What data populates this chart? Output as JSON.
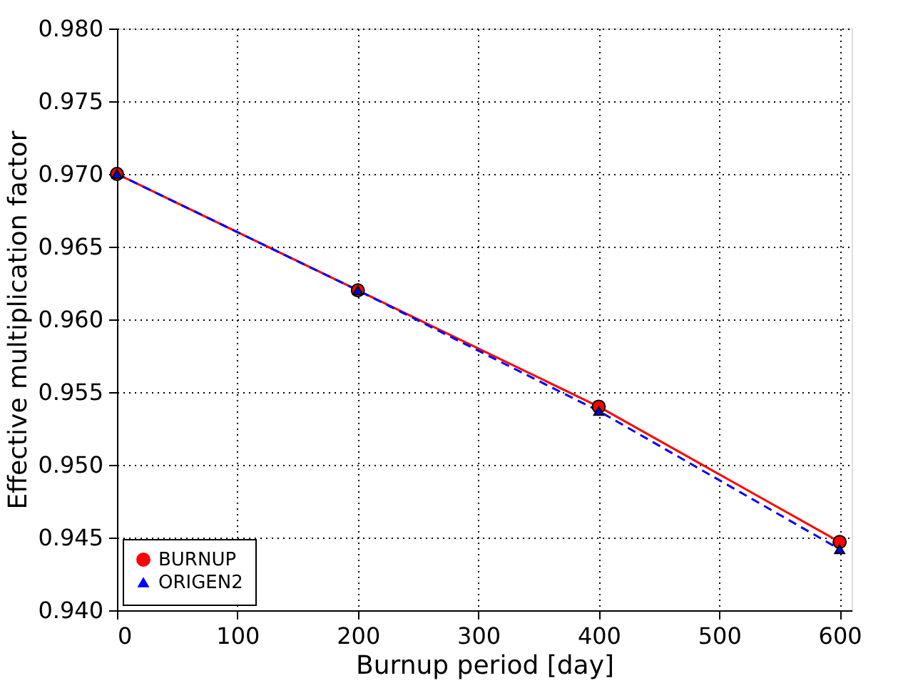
{
  "chart_data": {
    "type": "line",
    "xlabel": "Burnup period [day]",
    "ylabel": "Effective multiplication factor",
    "x": [
      0,
      200,
      400,
      600
    ],
    "series": [
      {
        "name": "BURNUP",
        "color": "#ff0000",
        "values": [
          0.97,
          0.962,
          0.954,
          0.9447
        ],
        "marker": "circle",
        "line_style": "solid"
      },
      {
        "name": "ORIGEN2",
        "color": "#0000ff",
        "values": [
          0.97,
          0.962,
          0.9537,
          0.9442
        ],
        "marker": "triangle",
        "line_style": "dashed"
      }
    ],
    "xlim": [
      0,
      610
    ],
    "xticks": [
      0,
      100,
      200,
      300,
      400,
      500,
      600
    ],
    "ylim": [
      0.94,
      0.98
    ],
    "yticks": [
      {
        "value": 0.94,
        "label": "0.940"
      },
      {
        "value": 0.945,
        "label": "0.945"
      },
      {
        "value": 0.95,
        "label": "0.950"
      },
      {
        "value": 0.955,
        "label": "0.955"
      },
      {
        "value": 0.96,
        "label": "0.960"
      },
      {
        "value": 0.965,
        "label": "0.965"
      },
      {
        "value": 0.97,
        "label": "0.970"
      },
      {
        "value": 0.975,
        "label": "0.975"
      },
      {
        "value": 0.98,
        "label": "0.980"
      }
    ],
    "grid": true,
    "legend": "bottom left"
  }
}
